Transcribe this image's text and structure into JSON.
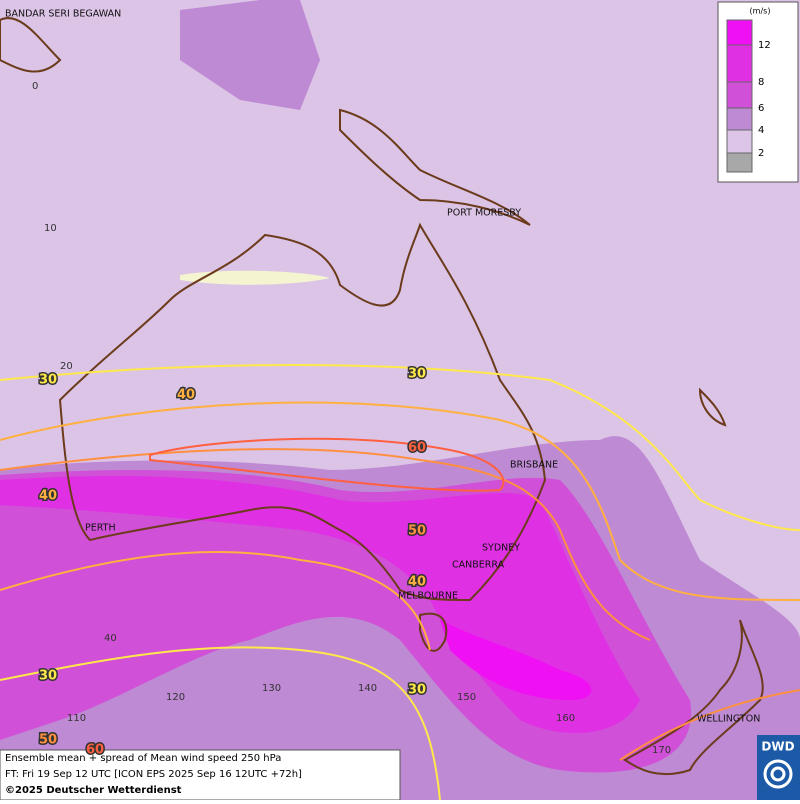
{
  "cities": [
    "BANDAR SERI BEGAWAN",
    "PORT MORESBY",
    "BRISBANE",
    "SYDNEY",
    "CANBERRA",
    "MELBOURNE",
    "PERTH",
    "WELLINGTON"
  ],
  "grid_labels": [
    "0",
    "10",
    "20",
    "40",
    "110",
    "120",
    "130",
    "140",
    "150",
    "160",
    "170"
  ],
  "contour_labels": [
    "30",
    "40",
    "30",
    "60",
    "40",
    "50",
    "40",
    "30",
    "30",
    "50",
    "60"
  ],
  "legend": {
    "unit": "(m/s)",
    "ticks": [
      "12",
      "8",
      "6",
      "4",
      "2"
    ],
    "colors": [
      "#f010f4",
      "#e030e4",
      "#d050d8",
      "#bf8ad4",
      "#dcc5e6",
      "#a8a8a8"
    ]
  },
  "footer": [
    "Ensemble mean + spread of Mean wind speed 250 hPa",
    "FT: Fri 19 Sep 12 UTC [ICON EPS 2025 Sep 16 12UTC +72h]",
    "©2025 Deutscher Wetterdienst"
  ],
  "logo": "DWD"
}
